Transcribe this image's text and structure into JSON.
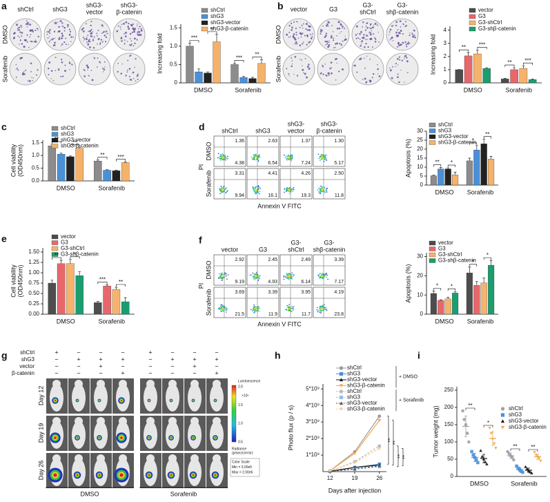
{
  "panel_letters": [
    "a",
    "b",
    "c",
    "d",
    "e",
    "f",
    "g",
    "h",
    "i"
  ],
  "colony_a": {
    "columns": [
      [
        "shCtrl"
      ],
      [
        "shG3"
      ],
      [
        "shG3-",
        "vector"
      ],
      [
        "shG3-",
        "β-catenin"
      ]
    ],
    "rows": [
      "DMSO",
      "Sorafenib"
    ]
  },
  "colony_b": {
    "columns": [
      [
        "vector"
      ],
      [
        "G3"
      ],
      [
        "G3-",
        "shCtrl"
      ],
      [
        "G3-",
        "shβ-catenin"
      ]
    ],
    "rows": [
      "DMSO",
      "Sorafenib"
    ]
  },
  "flow_e": {
    "columns": [
      [
        "shCtrl"
      ],
      [
        "shG3"
      ],
      [
        "shG3-",
        "vector"
      ],
      [
        "shG3-",
        "β-catenin"
      ]
    ],
    "rows": [
      "DMSO",
      "Sorafenib"
    ],
    "y_label": "PI",
    "x_label": "Annexin V FITC",
    "quadrants": [
      [
        [
          "1.36",
          "4.38"
        ],
        [
          "2.63",
          "6.54"
        ],
        [
          "1.37",
          "7.24"
        ],
        [
          "1.30",
          "5.17"
        ]
      ],
      [
        [
          "3.31",
          "9.94"
        ],
        [
          "4.41",
          "16.1"
        ],
        [
          "4.26",
          "19.3"
        ],
        [
          "2.50",
          "11.8"
        ]
      ]
    ]
  },
  "flow_f": {
    "columns": [
      [
        "vector"
      ],
      [
        "G3"
      ],
      [
        "G3-",
        "shCtrl"
      ],
      [
        "G3-",
        "shβ-catenin"
      ]
    ],
    "rows": [
      "DMSO",
      "Sorafenib"
    ],
    "y_label": "PI",
    "x_label": "Annexin V FITC",
    "quadrants": [
      [
        [
          "2.92",
          "9.19"
        ],
        [
          "2.45",
          "4.93"
        ],
        [
          "2.49",
          "6.14"
        ],
        [
          "3.39",
          "7.17"
        ]
      ],
      [
        [
          "3.69",
          "21.5"
        ],
        [
          "3.39",
          "11.9"
        ],
        [
          "3.95",
          "11.7"
        ],
        [
          "4.19",
          "23.8"
        ]
      ]
    ]
  },
  "mouse_g": {
    "groups": [
      "shCtrl",
      "shG3",
      "vector",
      "β-catenin"
    ],
    "signs": [
      [
        "+",
        "−",
        "−",
        "−",
        "+",
        "−",
        "−",
        "−"
      ],
      [
        "−",
        "+",
        "+",
        "+",
        "−",
        "+",
        "+",
        "+"
      ],
      [
        "−",
        "−",
        "+",
        "−",
        "−",
        "−",
        "+",
        "−"
      ],
      [
        "−",
        "−",
        "−",
        "+",
        "−",
        "−",
        "−",
        "+"
      ]
    ],
    "days": [
      "Day 12",
      "Day 19",
      "Day 26"
    ],
    "treatments": [
      "DMSO",
      "Sorafenib"
    ],
    "scale_title": "Luminescence",
    "scale_ticks": [
      "2.0",
      "1.5",
      "1.0",
      "0.5"
    ],
    "scale_unit": "×10⁶",
    "scale_caption": [
      "Radiance",
      "(p/sec/cm²/sr)"
    ],
    "scale_box": [
      "Color Scale",
      "Min = 3.00e5",
      "Max = 2.00e6"
    ]
  },
  "chart_data": [
    {
      "type": "bar",
      "ylabel": [
        "Increasing fold"
      ],
      "categories": [
        "DMSO",
        "Sorafenib"
      ],
      "ylim": [
        0,
        1.6
      ],
      "yticks": [
        0,
        0.5,
        {
          "value": 1,
          "label": "1.0"
        },
        1.5
      ],
      "series": [
        {
          "name": "shCtrl",
          "color": "#8c8c8c",
          "values": [
            1.0,
            0.5
          ],
          "errors": [
            0.08,
            0.04
          ]
        },
        {
          "name": "shG3",
          "color": "#4a90d9",
          "values": [
            0.3,
            0.15
          ],
          "errors": [
            0.08,
            0.03
          ]
        },
        {
          "name": "shG3-vector",
          "color": "#222222",
          "values": [
            0.27,
            0.12
          ],
          "errors": [
            0.03,
            0.03
          ]
        },
        {
          "name": "shG3-β-catenin",
          "color": "#f4b26b",
          "values": [
            1.12,
            0.53
          ],
          "errors": [
            0.2,
            0.1
          ]
        }
      ],
      "annotations": [
        "***",
        "**",
        "***",
        "**"
      ]
    },
    {
      "type": "bar",
      "ylabel": [
        "Increasing fold"
      ],
      "categories": [
        "DMSO",
        "Sorafenib"
      ],
      "ylim": [
        0,
        4.3
      ],
      "yticks": [
        0,
        1,
        2,
        3,
        4
      ],
      "series": [
        {
          "name": "vector",
          "color": "#4d4d4d",
          "values": [
            1.0,
            0.3
          ],
          "errors": [
            0.02,
            0.04
          ]
        },
        {
          "name": "G3",
          "color": "#e8676b",
          "values": [
            2.05,
            1.0
          ],
          "errors": [
            0.25,
            0.15
          ]
        },
        {
          "name": "G3-shCtrl",
          "color": "#f6b36c",
          "values": [
            2.2,
            1.1
          ],
          "errors": [
            0.3,
            0.2
          ]
        },
        {
          "name": "G3-shβ-catenin",
          "color": "#1b9e6e",
          "values": [
            1.1,
            0.25
          ],
          "errors": [
            0.05,
            0.03
          ]
        }
      ],
      "annotations": [
        "**",
        "***",
        "**",
        "***"
      ]
    },
    {
      "type": "bar",
      "ylabel": [
        "Cell viability",
        "(OD450nm)"
      ],
      "categories": [
        "DMSO",
        "Sorafenib"
      ],
      "ylim": [
        0,
        1.6
      ],
      "yticks": [
        {
          "value": 0,
          "label": "0.0"
        },
        0.5,
        {
          "value": 1,
          "label": "1.0"
        },
        1.5
      ],
      "series": [
        {
          "name": "shCtrl",
          "color": "#8c8c8c",
          "values": [
            1.38,
            0.78
          ],
          "errors": [
            0.06,
            0.04
          ]
        },
        {
          "name": "shG3",
          "color": "#4a90d9",
          "values": [
            1.05,
            0.42
          ],
          "errors": [
            0.04,
            0.02
          ]
        },
        {
          "name": "shG3-vector",
          "color": "#222222",
          "values": [
            0.95,
            0.4
          ],
          "errors": [
            0.03,
            0.02
          ]
        },
        {
          "name": "shG3-β-catenin",
          "color": "#f4b26b",
          "values": [
            1.28,
            0.72
          ],
          "errors": [
            0.03,
            0.02
          ]
        }
      ],
      "annotations": [
        "**",
        "**",
        "**",
        "***"
      ]
    },
    {
      "type": "bar",
      "ylabel": [
        "Cell viability",
        "(OD450nm)"
      ],
      "categories": [
        "DMSO",
        "Sorafenib"
      ],
      "ylim": [
        0,
        1.6
      ],
      "yticks": [
        {
          "value": 0,
          "label": "0.00"
        },
        0.25,
        {
          "value": 0.5,
          "label": "0.50"
        },
        0.75,
        {
          "value": 1,
          "label": "1.00"
        },
        1.25,
        {
          "value": 1.5,
          "label": "1.50"
        }
      ],
      "series": [
        {
          "name": "vector",
          "color": "#4d4d4d",
          "values": [
            0.75,
            0.28
          ],
          "errors": [
            0.07,
            0.03
          ]
        },
        {
          "name": "G3",
          "color": "#e8676b",
          "values": [
            1.22,
            0.68
          ],
          "errors": [
            0.08,
            0.03
          ]
        },
        {
          "name": "G3-shCtrl",
          "color": "#f6b36c",
          "values": [
            1.22,
            0.6
          ],
          "errors": [
            0.1,
            0.05
          ]
        },
        {
          "name": "G3-shβ-catenin",
          "color": "#1b9e6e",
          "values": [
            0.93,
            0.3
          ],
          "errors": [
            0.1,
            0.1
          ]
        }
      ],
      "annotations": [
        "**",
        "*",
        "***",
        "**"
      ]
    },
    {
      "type": "bar",
      "ylabel": [
        "Apoptosis (%)"
      ],
      "categories": [
        "DMSO",
        "Sorafenib"
      ],
      "ylim": [
        0,
        30
      ],
      "yticks": [
        0,
        5,
        10,
        15,
        20,
        25,
        30
      ],
      "series": [
        {
          "name": "shCtrl",
          "color": "#8c8c8c",
          "values": [
            5.2,
            13.5
          ],
          "errors": [
            0.4,
            1.5
          ]
        },
        {
          "name": "shG3",
          "color": "#4a90d9",
          "values": [
            9,
            19.5
          ],
          "errors": [
            0.8,
            2.5
          ]
        },
        {
          "name": "shG3-vector",
          "color": "#222222",
          "values": [
            9,
            23
          ],
          "errors": [
            0.6,
            2.5
          ]
        },
        {
          "name": "shG3-β-catenin",
          "color": "#f4b26b",
          "values": [
            5.7,
            14.5
          ],
          "errors": [
            1.5,
            1.5
          ]
        }
      ],
      "annotations": [
        "**",
        "*",
        "*",
        "**"
      ]
    },
    {
      "type": "bar",
      "ylabel": [
        "Apoptosis (%)"
      ],
      "categories": [
        "DMSO",
        "Sorafenib"
      ],
      "ylim": [
        0,
        32
      ],
      "yticks": [
        0,
        10,
        20,
        30
      ],
      "series": [
        {
          "name": "vector",
          "color": "#4d4d4d",
          "values": [
            10.8,
            21.5
          ],
          "errors": [
            1.2,
            3
          ]
        },
        {
          "name": "G3",
          "color": "#e8676b",
          "values": [
            7.2,
            15
          ],
          "errors": [
            0.3,
            2
          ]
        },
        {
          "name": "G3-shCtrl",
          "color": "#f6b36c",
          "values": [
            8,
            16.3
          ],
          "errors": [
            0.8,
            2.5
          ]
        },
        {
          "name": "G3-shβ-catenin",
          "color": "#1b9e6e",
          "values": [
            11,
            25.5
          ],
          "errors": [
            0.8,
            2.5
          ]
        }
      ],
      "annotations": [
        "*",
        "*",
        "*",
        "*"
      ]
    },
    {
      "type": "line",
      "ylabel": [
        "Photo flux (p / s)"
      ],
      "xlabel": "Days after injection",
      "x": [
        12,
        19,
        26
      ],
      "xlim": [
        10,
        28
      ],
      "xticks": [
        12,
        19,
        26
      ],
      "ylim": [
        0,
        5300000000
      ],
      "yticks": [
        {
          "value": 1000000000,
          "label": "1*10⁹"
        },
        {
          "value": 2000000000,
          "label": "2*10⁹"
        },
        {
          "value": 3000000000,
          "label": "3*10⁹"
        },
        {
          "value": 4000000000,
          "label": "4*10⁹"
        },
        {
          "value": 5000000000,
          "label": "5*10⁹"
        }
      ],
      "series": [
        {
          "name": "shCtrl",
          "color": "#999999",
          "marker": "circle",
          "dashed": false,
          "values": [
            50000000,
            1200000000,
            3350000000
          ]
        },
        {
          "name": "shG3",
          "color": "#4a90d9",
          "marker": "square",
          "dashed": false,
          "values": [
            30000000,
            250000000,
            450000000
          ]
        },
        {
          "name": "shG3-vector",
          "color": "#111111",
          "marker": "triangle",
          "dashed": false,
          "values": [
            30000000,
            250000000,
            400000000
          ]
        },
        {
          "name": "shG3-β-catenin",
          "color": "#f4a64a",
          "marker": "triangle-down",
          "dashed": false,
          "values": [
            50000000,
            1100000000,
            3100000000
          ]
        },
        {
          "name": "shCtrl",
          "color": "#b8b8b8",
          "marker": "circle",
          "dashed": true,
          "values": [
            40000000,
            600000000,
            1550000000
          ]
        },
        {
          "name": "shG3",
          "color": "#8fc0ee",
          "marker": "square",
          "dashed": true,
          "values": [
            20000000,
            150000000,
            300000000
          ]
        },
        {
          "name": "shG3-vector",
          "color": "#555555",
          "marker": "triangle",
          "dashed": true,
          "values": [
            20000000,
            150000000,
            350000000
          ]
        },
        {
          "name": "shG3-β-catenin",
          "color": "#f8c98e",
          "marker": "triangle-down",
          "dashed": true,
          "values": [
            40000000,
            550000000,
            1400000000
          ]
        }
      ],
      "group_labels": [
        "+ DMSO",
        "+ Sorafenib"
      ],
      "annotations": [
        "**",
        "**",
        "**",
        "**"
      ]
    },
    {
      "type": "dot",
      "ylabel": [
        "Tumor weight (mg)"
      ],
      "categories": [
        "DMSO",
        "Sorafenib"
      ],
      "ylim": [
        0,
        260
      ],
      "yticks": [
        0,
        50,
        100,
        150,
        200,
        250
      ],
      "series": [
        {
          "name": "shCtrl",
          "color": "#a0a0a0",
          "marker": "circle",
          "values": [
            145,
            60
          ],
          "errors": [
            30,
            8
          ],
          "points": [
            [
              190,
              165,
              150,
              125,
              100
            ],
            [
              72,
              66,
              60,
              55,
              48
            ]
          ]
        },
        {
          "name": "shG3",
          "color": "#4a90d9",
          "marker": "square",
          "values": [
            55,
            20
          ],
          "errors": [
            12,
            6
          ],
          "points": [
            [
              72,
              62,
              55,
              48,
              40
            ],
            [
              30,
              24,
              20,
              15,
              12
            ]
          ]
        },
        {
          "name": "shG3-vector",
          "color": "#111111",
          "marker": "triangle",
          "values": [
            52,
            18
          ],
          "errors": [
            12,
            6
          ],
          "points": [
            [
              75,
              58,
              50,
              42,
              36
            ],
            [
              28,
              22,
              17,
              13,
              10
            ]
          ]
        },
        {
          "name": "shG3-β-catenin",
          "color": "#f4a64a",
          "marker": "triangle-down",
          "values": [
            110,
            57
          ],
          "errors": [
            20,
            8
          ],
          "points": [
            [
              140,
              125,
              108,
              95,
              82
            ],
            [
              70,
              62,
              57,
              52,
              45
            ]
          ]
        }
      ],
      "annotations": [
        "**",
        "*",
        "**",
        "**"
      ]
    }
  ]
}
